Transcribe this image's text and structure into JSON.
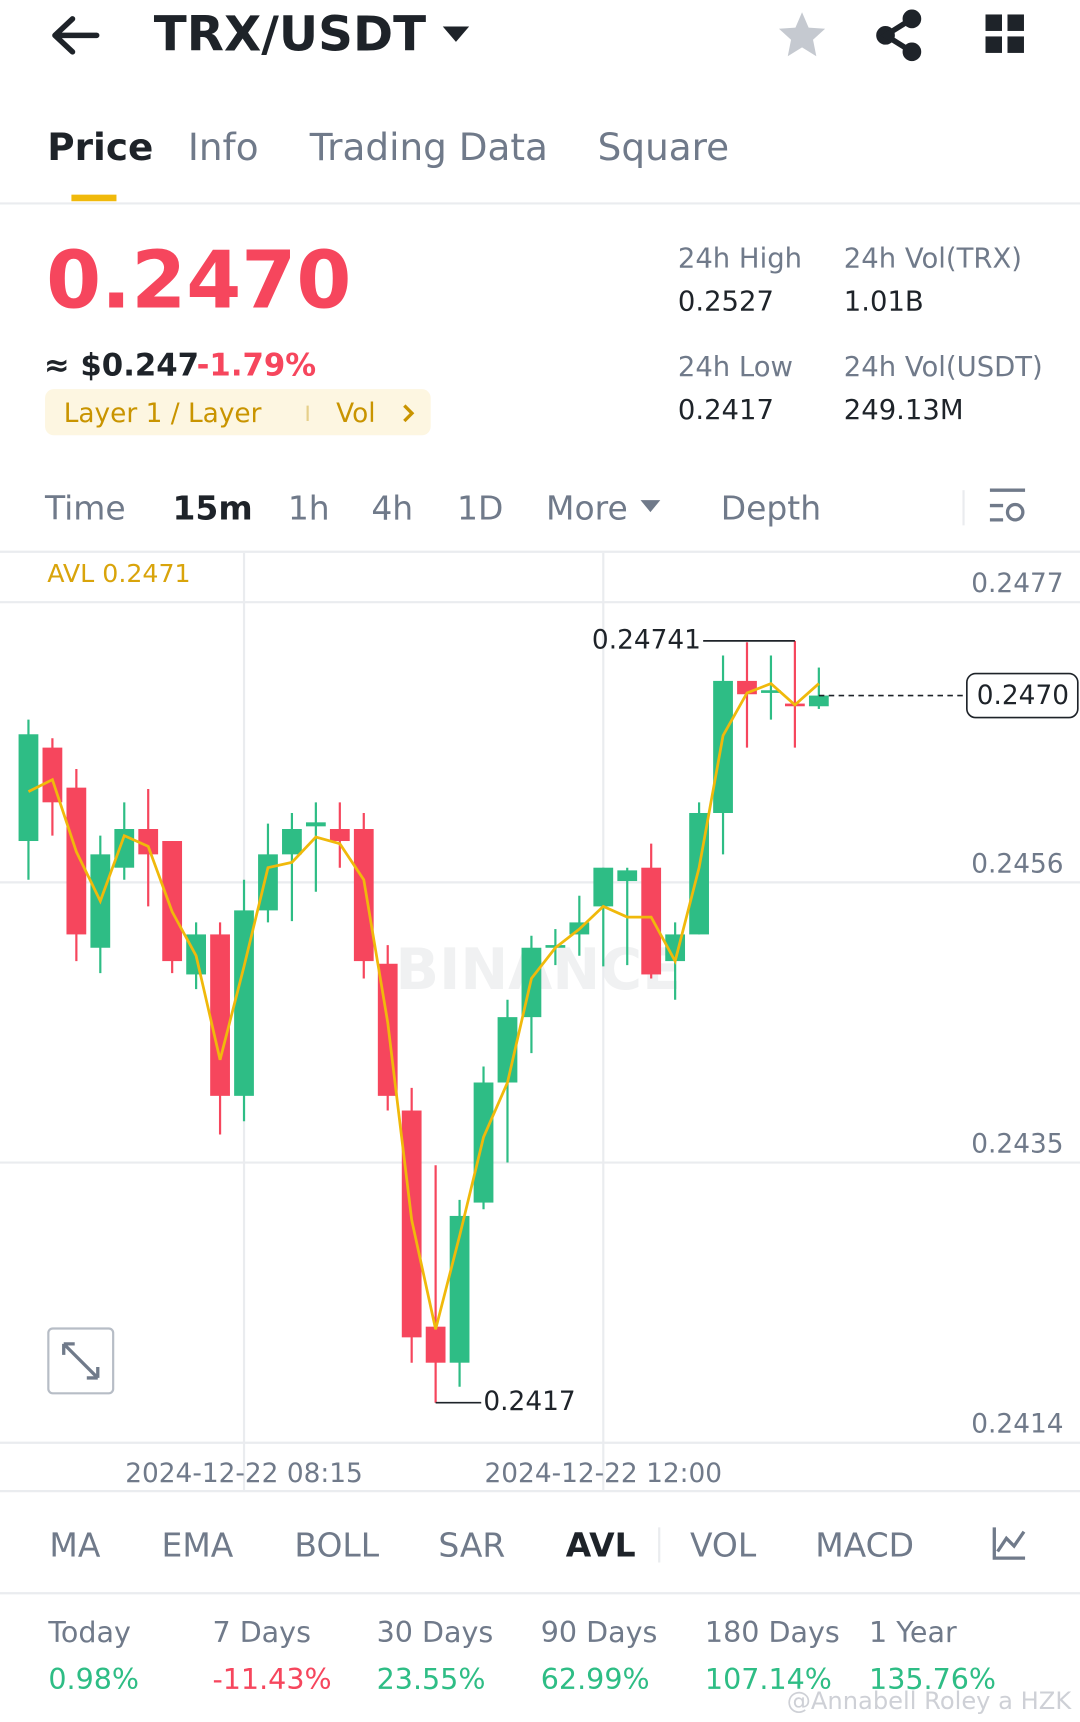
{
  "header": {
    "pair": "TRX/USDT"
  },
  "tabs": [
    "Price",
    "Info",
    "Trading Data",
    "Square"
  ],
  "ticker": {
    "price": "0.2470",
    "usd": "≈ $0.247",
    "change": "-1.79%",
    "tag": "Layer 1 / Layer",
    "tag_extra": "Vol"
  },
  "stats": [
    {
      "label": "24h High",
      "value": "0.2527"
    },
    {
      "label": "24h Vol(TRX)",
      "value": "1.01B"
    },
    {
      "label": "24h Low",
      "value": "0.2417"
    },
    {
      "label": "24h Vol(USDT)",
      "value": "249.13M"
    }
  ],
  "intervals": [
    "Time",
    "15m",
    "1h",
    "4h",
    "1D",
    "More",
    "Depth"
  ],
  "indicators": [
    "MA",
    "EMA",
    "BOLL",
    "SAR",
    "AVL",
    "VOL",
    "MACD"
  ],
  "performance": [
    {
      "label": "Today",
      "value": "0.98%"
    },
    {
      "label": "7 Days",
      "value": "-11.43%"
    },
    {
      "label": "30 Days",
      "value": "23.55%"
    },
    {
      "label": "90 Days",
      "value": "62.99%"
    },
    {
      "label": "180 Days",
      "value": "107.14%"
    },
    {
      "label": "1 Year",
      "value": "135.76%"
    }
  ],
  "watermark": "@Annabell Roley a HZK",
  "chart_watermark": "BINANCE",
  "chart_data": {
    "type": "candlestick",
    "indicator_label": "AVL 0.2471",
    "categories": [
      null,
      null,
      null,
      null,
      null,
      null,
      null,
      null,
      null,
      "2024-12-22 08:15",
      null,
      null,
      null,
      null,
      null,
      null,
      null,
      null,
      null,
      null,
      null,
      null,
      null,
      null,
      "2024-12-22 12:00",
      null,
      null,
      null,
      null,
      null,
      null,
      null,
      null,
      null
    ],
    "open": [
      0.24591,
      0.24661,
      0.24631,
      0.24511,
      0.24571,
      0.246,
      0.24591,
      0.24491,
      0.24521,
      0.244,
      0.24539,
      0.24581,
      0.24602,
      0.246,
      0.246,
      0.24499,
      0.24389,
      0.24227,
      0.242,
      0.2432,
      0.2441,
      0.24459,
      0.24511,
      0.24521,
      0.24542,
      0.24561,
      0.24571,
      0.24501,
      0.24521,
      0.24612,
      0.24711,
      0.24702,
      0.24694,
      0.24692
    ],
    "high": [
      0.24682,
      0.24668,
      0.24645,
      0.24595,
      0.2462,
      0.2463,
      0.24591,
      0.2453,
      0.2453,
      0.24562,
      0.24604,
      0.24612,
      0.2462,
      0.2462,
      0.24612,
      0.24513,
      0.24406,
      0.24348,
      0.24322,
      0.24422,
      0.24472,
      0.2452,
      0.24525,
      0.2455,
      0.24571,
      0.24571,
      0.24589,
      0.2453,
      0.2462,
      0.2473,
      0.2474,
      0.2473,
      0.24741,
      0.24721
    ],
    "low": [
      0.24562,
      0.24595,
      0.24501,
      0.24492,
      0.24562,
      0.24542,
      0.24492,
      0.2448,
      0.24371,
      0.24381,
      0.2453,
      0.24531,
      0.24553,
      0.24571,
      0.24488,
      0.24389,
      0.242,
      0.2417,
      0.24182,
      0.24315,
      0.2435,
      0.24432,
      0.24498,
      0.24505,
      0.24497,
      0.24498,
      0.24488,
      0.24472,
      0.24521,
      0.24581,
      0.24661,
      0.24682,
      0.24661,
      0.2469
    ],
    "close": [
      0.24671,
      0.2462,
      0.24521,
      0.24581,
      0.246,
      0.24581,
      0.24501,
      0.24521,
      0.244,
      0.24539,
      0.24581,
      0.246,
      0.24605,
      0.24591,
      0.24501,
      0.244,
      0.24219,
      0.242,
      0.2431,
      0.2441,
      0.24459,
      0.24511,
      0.24513,
      0.2453,
      0.24571,
      0.24569,
      0.24491,
      0.24521,
      0.24612,
      0.24711,
      0.24701,
      0.24704,
      0.24692,
      0.247
    ],
    "avl": [
      0.24628,
      0.24637,
      0.24583,
      0.24546,
      0.24595,
      0.24587,
      0.24538,
      0.24505,
      0.24427,
      0.24497,
      0.24571,
      0.24575,
      0.24594,
      0.24589,
      0.24562,
      0.24455,
      0.24307,
      0.24225,
      0.24295,
      0.24369,
      0.2441,
      0.24488,
      0.24511,
      0.24525,
      0.24542,
      0.24534,
      0.24534,
      0.24501,
      0.24571,
      0.2467,
      0.24702,
      0.24709,
      0.24693,
      0.24709
    ],
    "current_price": {
      "value": 0.247,
      "label": "0.2470"
    },
    "ylim": [
      0.2414,
      0.24807
    ],
    "yticks": [
      0.2477,
      0.2456,
      0.2435,
      0.2414
    ],
    "grid": true,
    "up_color": "#2ebd85",
    "down_color": "#f6465d",
    "avl_color": "#f0b90b"
  }
}
